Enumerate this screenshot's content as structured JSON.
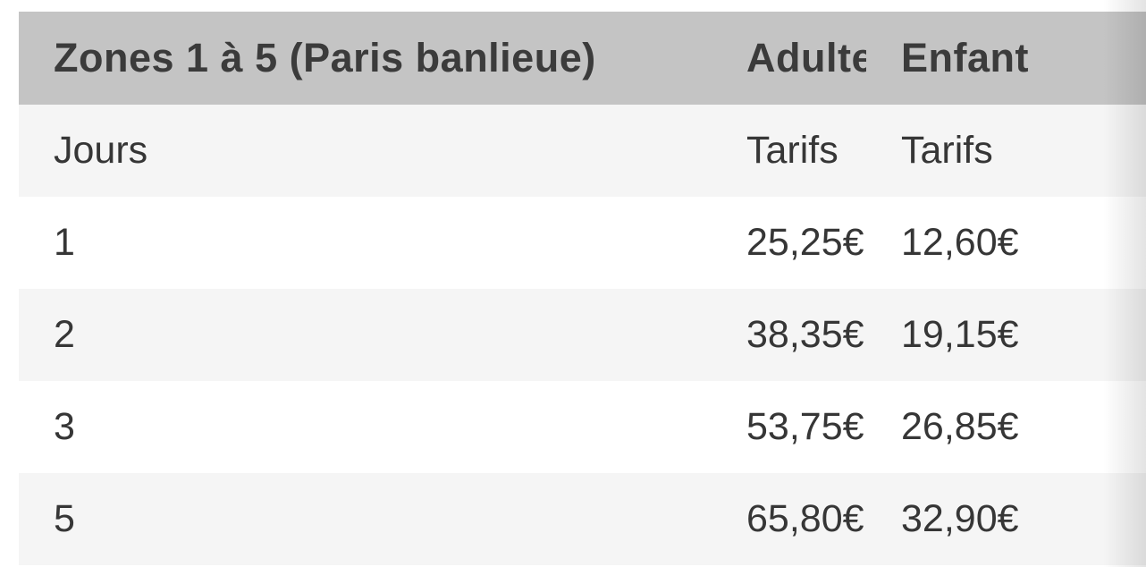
{
  "table": {
    "title": "Zones 1 à 5 (Paris banlieue)",
    "columns": {
      "adult_header": "Adulte",
      "child_header": "Enfant"
    },
    "subheader": {
      "days_label": "Jours",
      "adult_label": "Tarifs",
      "child_label": "Tarifs"
    },
    "rows": [
      {
        "days": "1",
        "adult_price": "25,25€",
        "child_price": "12,60€"
      },
      {
        "days": "2",
        "adult_price": "38,35€",
        "child_price": "19,15€"
      },
      {
        "days": "3",
        "adult_price": "53,75€",
        "child_price": "26,85€"
      },
      {
        "days": "5",
        "adult_price": "65,80€",
        "child_price": "32,90€"
      }
    ],
    "colors": {
      "header_bg": "#c4c4c4",
      "alt_row_bg": "#f5f5f5",
      "plain_row_bg": "#ffffff",
      "header_text": "#3b3b3b",
      "body_text": "#363636"
    }
  }
}
